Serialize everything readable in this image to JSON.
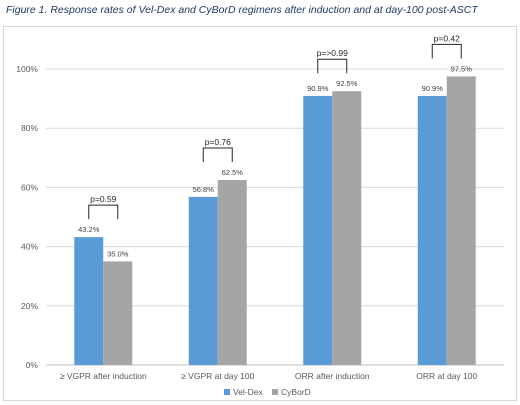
{
  "caption": "Figure 1. Response rates of Vel-Dex and CyBorD regimens after induction and at day-100 post-ASCT",
  "chart_data": {
    "type": "bar",
    "categories": [
      "≥ VGPR after induction",
      "≥ VGPR at day 100",
      "ORR after induction",
      "ORR at day 100"
    ],
    "series": [
      {
        "name": "Vel-Dex",
        "values": [
          43.2,
          56.8,
          90.9,
          90.9
        ],
        "labels": [
          "43.2%",
          "56.8%",
          "90.9%",
          "90.9%"
        ],
        "color": "#5b9bd5"
      },
      {
        "name": "CyBorD",
        "values": [
          35.0,
          62.5,
          92.5,
          97.5
        ],
        "labels": [
          "35.0%",
          "62.5%",
          "92.5%",
          "97.5%"
        ],
        "color": "#a5a5a5"
      }
    ],
    "y_ticks": [
      0,
      20,
      40,
      60,
      80,
      100
    ],
    "y_tick_labels": [
      "0%",
      "20%",
      "40%",
      "60%",
      "80%",
      "100%"
    ],
    "ylim": [
      0,
      100
    ],
    "grid": true,
    "legend_position": "bottom",
    "annotations": [
      "p=0.59",
      "p=0.76",
      "p=>0.99",
      "p=0.42"
    ],
    "xlabel": "",
    "ylabel": ""
  }
}
